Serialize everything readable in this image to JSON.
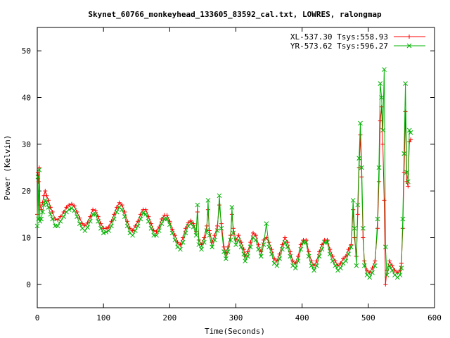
{
  "chart_data": {
    "type": "line",
    "title": "Skynet_60766_monkeyhead_133605_83592_cal.txt, LOWRES, ralongmap",
    "xlabel": "Time(Seconds)",
    "ylabel": "Power (Kelvin)",
    "xlim": [
      0,
      600
    ],
    "ylim": [
      -5,
      55
    ],
    "xticks": [
      0,
      100,
      200,
      300,
      400,
      500,
      600
    ],
    "yticks": [
      0,
      10,
      20,
      30,
      40,
      50
    ],
    "grid": false,
    "legend_position": "top-right",
    "series": [
      {
        "name": "XL-537.30 Tsys:558.93",
        "color": "#ff0000",
        "marker": "plus",
        "points": [
          [
            0,
            15
          ],
          [
            1,
            24
          ],
          [
            2,
            22
          ],
          [
            3,
            25
          ],
          [
            4,
            17
          ],
          [
            6,
            16
          ],
          [
            8,
            17.5
          ],
          [
            10,
            19
          ],
          [
            12,
            20
          ],
          [
            14,
            19
          ],
          [
            17,
            18
          ],
          [
            20,
            16.5
          ],
          [
            23,
            15.5
          ],
          [
            27,
            14
          ],
          [
            31,
            13.8
          ],
          [
            35,
            14.5
          ],
          [
            40,
            15.5
          ],
          [
            44,
            16.5
          ],
          [
            48,
            17
          ],
          [
            52,
            17.2
          ],
          [
            56,
            16.8
          ],
          [
            60,
            15.5
          ],
          [
            64,
            14.2
          ],
          [
            68,
            13
          ],
          [
            72,
            12.6
          ],
          [
            76,
            13.2
          ],
          [
            80,
            14.5
          ],
          [
            84,
            16
          ],
          [
            88,
            15.8
          ],
          [
            92,
            14.5
          ],
          [
            96,
            13
          ],
          [
            100,
            12
          ],
          [
            104,
            12
          ],
          [
            108,
            12.3
          ],
          [
            112,
            13.5
          ],
          [
            116,
            15
          ],
          [
            120,
            16.5
          ],
          [
            124,
            17.5
          ],
          [
            128,
            17
          ],
          [
            132,
            15.5
          ],
          [
            136,
            13.5
          ],
          [
            140,
            12
          ],
          [
            144,
            11.5
          ],
          [
            148,
            12.5
          ],
          [
            152,
            13.5
          ],
          [
            156,
            15
          ],
          [
            160,
            16
          ],
          [
            164,
            16
          ],
          [
            168,
            14.5
          ],
          [
            172,
            13
          ],
          [
            176,
            11.5
          ],
          [
            180,
            11.3
          ],
          [
            184,
            12.3
          ],
          [
            188,
            14
          ],
          [
            192,
            14.8
          ],
          [
            196,
            14.8
          ],
          [
            200,
            13.5
          ],
          [
            204,
            11.8
          ],
          [
            208,
            10.5
          ],
          [
            212,
            9
          ],
          [
            216,
            8.5
          ],
          [
            220,
            10
          ],
          [
            224,
            12
          ],
          [
            228,
            13.2
          ],
          [
            232,
            13.6
          ],
          [
            236,
            13
          ],
          [
            240,
            11.3
          ],
          [
            242,
            15.5
          ],
          [
            244,
            9.5
          ],
          [
            248,
            8.5
          ],
          [
            252,
            10
          ],
          [
            256,
            12.5
          ],
          [
            258,
            16
          ],
          [
            260,
            11.5
          ],
          [
            264,
            9
          ],
          [
            268,
            10.5
          ],
          [
            272,
            12.5
          ],
          [
            275,
            17
          ],
          [
            278,
            13
          ],
          [
            282,
            8
          ],
          [
            285,
            6.5
          ],
          [
            288,
            8
          ],
          [
            292,
            10.5
          ],
          [
            294,
            15
          ],
          [
            296,
            12
          ],
          [
            300,
            9.5
          ],
          [
            304,
            10.5
          ],
          [
            308,
            9
          ],
          [
            312,
            7.5
          ],
          [
            314,
            6
          ],
          [
            318,
            7
          ],
          [
            322,
            9
          ],
          [
            326,
            11
          ],
          [
            330,
            10.5
          ],
          [
            334,
            8.5
          ],
          [
            338,
            7
          ],
          [
            342,
            9.5
          ],
          [
            346,
            10
          ],
          [
            350,
            9
          ],
          [
            354,
            7.5
          ],
          [
            358,
            5.5
          ],
          [
            362,
            5
          ],
          [
            366,
            6.5
          ],
          [
            370,
            8.5
          ],
          [
            374,
            10
          ],
          [
            378,
            9
          ],
          [
            382,
            7
          ],
          [
            386,
            5
          ],
          [
            390,
            4.5
          ],
          [
            394,
            6
          ],
          [
            398,
            8.5
          ],
          [
            402,
            9.5
          ],
          [
            406,
            9.5
          ],
          [
            410,
            7
          ],
          [
            414,
            5
          ],
          [
            418,
            4
          ],
          [
            422,
            5
          ],
          [
            426,
            7
          ],
          [
            430,
            8.5
          ],
          [
            434,
            9.5
          ],
          [
            438,
            9.5
          ],
          [
            442,
            7.5
          ],
          [
            446,
            6
          ],
          [
            450,
            5
          ],
          [
            454,
            4
          ],
          [
            458,
            4.5
          ],
          [
            462,
            5.5
          ],
          [
            466,
            6
          ],
          [
            470,
            7.5
          ],
          [
            474,
            8.5
          ],
          [
            477,
            16
          ],
          [
            479,
            10
          ],
          [
            482,
            6
          ],
          [
            484,
            15
          ],
          [
            486,
            25
          ],
          [
            488,
            32
          ],
          [
            490,
            23
          ],
          [
            492,
            10
          ],
          [
            494,
            5
          ],
          [
            498,
            3
          ],
          [
            502,
            2.5
          ],
          [
            506,
            3.5
          ],
          [
            510,
            5
          ],
          [
            514,
            12
          ],
          [
            516,
            22
          ],
          [
            518,
            35
          ],
          [
            520,
            38
          ],
          [
            522,
            30
          ],
          [
            524,
            18
          ],
          [
            526,
            0
          ],
          [
            528,
            3
          ],
          [
            532,
            5
          ],
          [
            536,
            4
          ],
          [
            540,
            3
          ],
          [
            544,
            2.5
          ],
          [
            548,
            3
          ],
          [
            550,
            4.5
          ],
          [
            552,
            12
          ],
          [
            554,
            24
          ],
          [
            556,
            37
          ],
          [
            558,
            22
          ],
          [
            560,
            21
          ],
          [
            562,
            30.5
          ],
          [
            564,
            31
          ]
        ]
      },
      {
        "name": "YR-573.62 Tsys:596.27",
        "color": "#00b000",
        "marker": "cross",
        "points": [
          [
            0,
            12.5
          ],
          [
            1,
            23
          ],
          [
            2,
            14
          ],
          [
            3,
            24.5
          ],
          [
            4,
            13.5
          ],
          [
            6,
            14
          ],
          [
            8,
            15.5
          ],
          [
            10,
            17
          ],
          [
            12,
            18
          ],
          [
            14,
            17.5
          ],
          [
            17,
            16.5
          ],
          [
            20,
            15
          ],
          [
            23,
            14
          ],
          [
            27,
            12.5
          ],
          [
            31,
            12.5
          ],
          [
            35,
            13.5
          ],
          [
            40,
            14.5
          ],
          [
            44,
            15.5
          ],
          [
            48,
            16
          ],
          [
            52,
            16.3
          ],
          [
            56,
            15.8
          ],
          [
            60,
            14.5
          ],
          [
            64,
            13
          ],
          [
            68,
            12
          ],
          [
            72,
            11.5
          ],
          [
            76,
            12.2
          ],
          [
            80,
            13.5
          ],
          [
            84,
            15
          ],
          [
            88,
            15
          ],
          [
            92,
            13.5
          ],
          [
            96,
            12
          ],
          [
            100,
            11
          ],
          [
            104,
            11.2
          ],
          [
            108,
            11.5
          ],
          [
            112,
            12.5
          ],
          [
            116,
            14
          ],
          [
            120,
            15.5
          ],
          [
            124,
            16.5
          ],
          [
            128,
            16
          ],
          [
            132,
            14.5
          ],
          [
            136,
            12.5
          ],
          [
            140,
            11
          ],
          [
            144,
            10.5
          ],
          [
            148,
            11.5
          ],
          [
            152,
            12.5
          ],
          [
            156,
            14
          ],
          [
            160,
            15.3
          ],
          [
            164,
            15
          ],
          [
            168,
            13.5
          ],
          [
            172,
            12
          ],
          [
            176,
            10.5
          ],
          [
            180,
            10.5
          ],
          [
            184,
            11.5
          ],
          [
            188,
            13
          ],
          [
            192,
            14
          ],
          [
            196,
            14
          ],
          [
            200,
            12.8
          ],
          [
            204,
            11
          ],
          [
            208,
            9.5
          ],
          [
            212,
            8
          ],
          [
            216,
            7.5
          ],
          [
            220,
            9
          ],
          [
            224,
            11
          ],
          [
            228,
            12.5
          ],
          [
            232,
            13
          ],
          [
            236,
            12.3
          ],
          [
            240,
            10.5
          ],
          [
            242,
            17
          ],
          [
            244,
            8.5
          ],
          [
            248,
            7.5
          ],
          [
            252,
            9
          ],
          [
            256,
            11.5
          ],
          [
            258,
            18
          ],
          [
            260,
            10.5
          ],
          [
            264,
            8
          ],
          [
            268,
            9.5
          ],
          [
            272,
            11.5
          ],
          [
            275,
            19
          ],
          [
            278,
            12
          ],
          [
            282,
            7
          ],
          [
            285,
            5.5
          ],
          [
            288,
            7
          ],
          [
            292,
            9.5
          ],
          [
            294,
            16.5
          ],
          [
            296,
            11
          ],
          [
            300,
            8.5
          ],
          [
            304,
            9.5
          ],
          [
            308,
            8
          ],
          [
            312,
            6.5
          ],
          [
            314,
            5
          ],
          [
            318,
            6
          ],
          [
            322,
            8
          ],
          [
            326,
            10
          ],
          [
            330,
            9.5
          ],
          [
            334,
            7.5
          ],
          [
            338,
            6
          ],
          [
            342,
            8.5
          ],
          [
            346,
            13
          ],
          [
            350,
            8
          ],
          [
            354,
            6.5
          ],
          [
            358,
            4.5
          ],
          [
            362,
            4
          ],
          [
            366,
            5.5
          ],
          [
            370,
            7.5
          ],
          [
            374,
            9
          ],
          [
            378,
            8
          ],
          [
            382,
            6
          ],
          [
            386,
            4
          ],
          [
            390,
            3.5
          ],
          [
            394,
            5
          ],
          [
            398,
            7.5
          ],
          [
            402,
            9
          ],
          [
            406,
            9
          ],
          [
            410,
            6
          ],
          [
            414,
            4
          ],
          [
            418,
            3
          ],
          [
            422,
            4
          ],
          [
            426,
            6
          ],
          [
            430,
            7.5
          ],
          [
            434,
            9
          ],
          [
            438,
            9
          ],
          [
            442,
            6.5
          ],
          [
            446,
            5
          ],
          [
            450,
            4
          ],
          [
            454,
            3
          ],
          [
            458,
            3.5
          ],
          [
            462,
            4.5
          ],
          [
            466,
            5
          ],
          [
            470,
            6.5
          ],
          [
            474,
            8
          ],
          [
            477,
            18
          ],
          [
            479,
            12
          ],
          [
            482,
            4
          ],
          [
            484,
            17
          ],
          [
            486,
            27
          ],
          [
            488,
            34.5
          ],
          [
            490,
            25
          ],
          [
            492,
            12
          ],
          [
            494,
            4
          ],
          [
            498,
            2
          ],
          [
            502,
            1.5
          ],
          [
            506,
            2.5
          ],
          [
            510,
            4
          ],
          [
            514,
            14
          ],
          [
            516,
            25
          ],
          [
            518,
            43
          ],
          [
            520,
            40
          ],
          [
            522,
            33
          ],
          [
            524,
            46
          ],
          [
            526,
            8
          ],
          [
            528,
            2
          ],
          [
            532,
            4
          ],
          [
            536,
            3
          ],
          [
            540,
            2
          ],
          [
            544,
            1.5
          ],
          [
            548,
            2
          ],
          [
            550,
            3.5
          ],
          [
            552,
            14
          ],
          [
            554,
            28
          ],
          [
            556,
            43
          ],
          [
            558,
            24
          ],
          [
            560,
            22
          ],
          [
            562,
            33
          ],
          [
            564,
            32.5
          ]
        ]
      }
    ]
  }
}
